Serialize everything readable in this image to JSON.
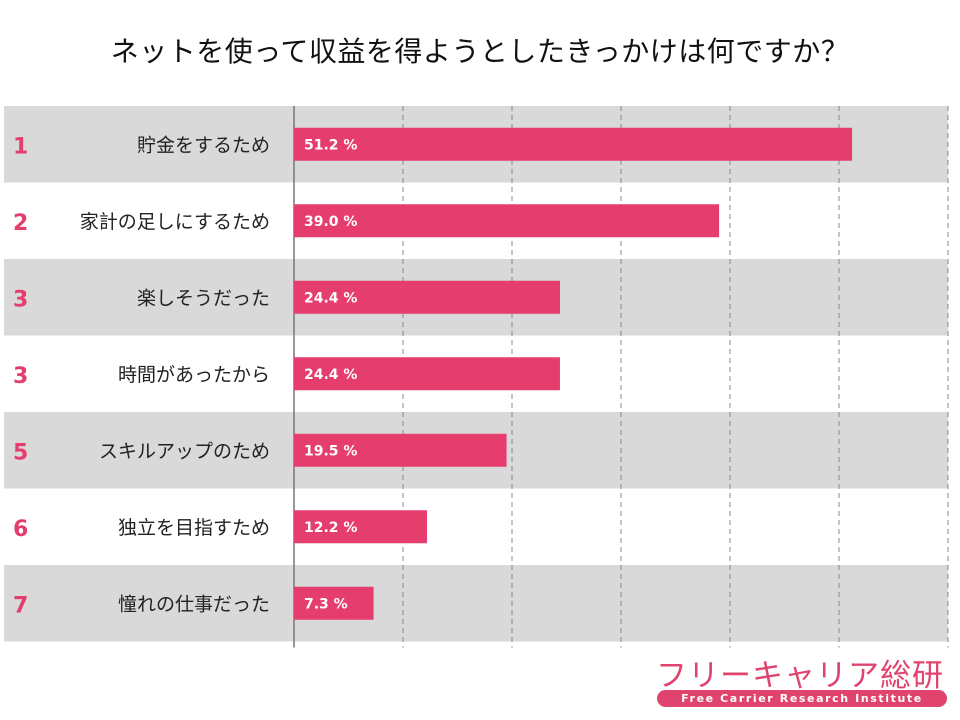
{
  "title": "ネットを使って収益を得ようとしたきっかけは何ですか？",
  "logo": {
    "name": "フリーキャリア総研",
    "subtitle": "Free Carrier Research Institute"
  },
  "chart_data": {
    "type": "bar",
    "orientation": "horizontal",
    "title": "ネットを使って収益を得ようとしたきっかけは何ですか？",
    "ranks": [
      "1",
      "2",
      "3",
      "3",
      "5",
      "6",
      "7"
    ],
    "categories": [
      "貯金をするため",
      "家計の足しにするため",
      "楽しそうだった",
      "時間があったから",
      "スキルアップのため",
      "独立を目指すため",
      "憧れの仕事だった"
    ],
    "values": [
      51.2,
      39.0,
      24.4,
      24.4,
      19.5,
      12.2,
      7.3
    ],
    "labels": [
      "51.2 %",
      "39.0 %",
      "24.4 %",
      "24.4 %",
      "19.5 %",
      "12.2 %",
      "7.3 %"
    ],
    "unit": "%",
    "xlim": [
      0,
      60
    ],
    "gridline_step": 10,
    "grid": true,
    "colors": {
      "bar": "#e53d6e",
      "rank": "#e53d6e",
      "stripe": "#d9d9d9",
      "grid": "#888888",
      "label": "#222222"
    }
  }
}
